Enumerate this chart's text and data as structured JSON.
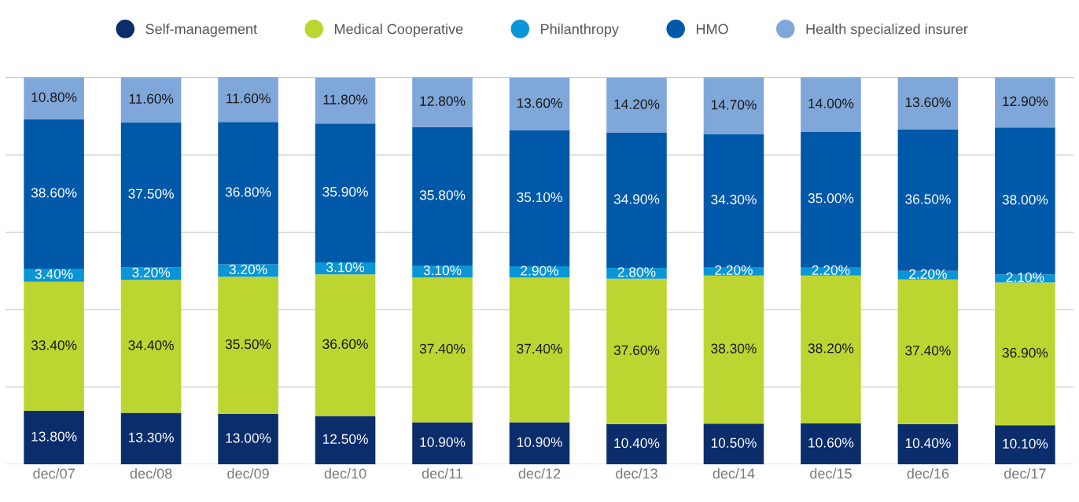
{
  "chart_data": {
    "type": "bar",
    "stacked": true,
    "legend": "top",
    "grid": "y",
    "tick_labels": "x",
    "categories": [
      "dec/07",
      "dec/08",
      "dec/09",
      "dec/10",
      "dec/11",
      "dec/12",
      "dec/13",
      "dec/14",
      "dec/15",
      "dec/16",
      "dec/17"
    ],
    "series": [
      {
        "name": "Self-management",
        "color": "#0b2d6b",
        "values": [
          13.8,
          13.3,
          13.0,
          12.5,
          10.9,
          10.9,
          10.4,
          10.5,
          10.6,
          10.4,
          10.1
        ],
        "value_labels": [
          "13.80%",
          "13.30%",
          "13.00%",
          "12.50%",
          "10.90%",
          "10.90%",
          "10.40%",
          "10.50%",
          "10.60%",
          "10.40%",
          "10.10%"
        ]
      },
      {
        "name": "Medical Cooperative",
        "color": "#bdd531",
        "values": [
          33.4,
          34.4,
          35.5,
          36.6,
          37.4,
          37.4,
          37.6,
          38.3,
          38.2,
          37.4,
          36.9
        ],
        "value_labels": [
          "33.40%",
          "34.40%",
          "35.50%",
          "36.60%",
          "37.40%",
          "37.40%",
          "37.60%",
          "38.30%",
          "38.20%",
          "37.40%",
          "36.90%"
        ]
      },
      {
        "name": "Philanthropy",
        "color": "#0a96d6",
        "values": [
          3.4,
          3.2,
          3.2,
          3.1,
          3.1,
          2.9,
          2.8,
          2.2,
          2.2,
          2.2,
          2.1
        ],
        "value_labels": [
          "3.40%",
          "3.20%",
          "3.20%",
          "3.10%",
          "3.10%",
          "2.90%",
          "2.80%",
          "2.20%",
          "2.20%",
          "2.20%",
          "2.10%"
        ]
      },
      {
        "name": "HMO",
        "color": "#0058a9",
        "values": [
          38.6,
          37.5,
          36.8,
          35.9,
          35.8,
          35.1,
          34.9,
          34.3,
          35.0,
          36.5,
          38.0
        ],
        "value_labels": [
          "38.60%",
          "37.50%",
          "36.80%",
          "35.90%",
          "35.80%",
          "35.10%",
          "34.90%",
          "34.30%",
          "35.00%",
          "36.50%",
          "38.00%"
        ]
      },
      {
        "name": "Health specialized insurer",
        "color": "#80a7d9",
        "values": [
          10.8,
          11.6,
          11.6,
          11.8,
          12.8,
          13.6,
          14.2,
          14.7,
          14.0,
          13.6,
          12.9
        ],
        "value_labels": [
          "10.80%",
          "11.60%",
          "11.60%",
          "11.80%",
          "12.80%",
          "13.60%",
          "14.20%",
          "14.70%",
          "14.00%",
          "13.60%",
          "12.90%"
        ]
      }
    ]
  }
}
